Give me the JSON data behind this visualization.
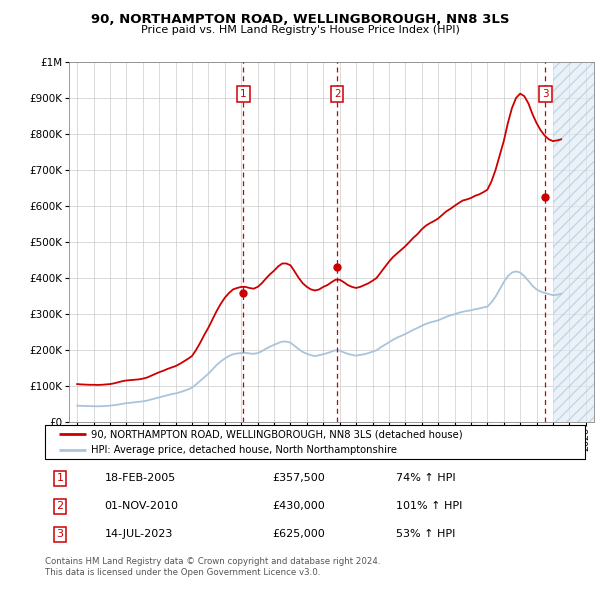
{
  "title": "90, NORTHAMPTON ROAD, WELLINGBOROUGH, NN8 3LS",
  "subtitle": "Price paid vs. HM Land Registry's House Price Index (HPI)",
  "ytick_values": [
    0,
    100000,
    200000,
    300000,
    400000,
    500000,
    600000,
    700000,
    800000,
    900000,
    1000000
  ],
  "ytick_labels": [
    "£0",
    "£100K",
    "£200K",
    "£300K",
    "£400K",
    "£500K",
    "£600K",
    "£700K",
    "£800K",
    "£900K",
    "£1M"
  ],
  "xlim": [
    1994.5,
    2026.5
  ],
  "ylim": [
    0,
    1000000
  ],
  "hpi_line_color": "#aac4dc",
  "property_line_color": "#cc0000",
  "grid_color": "#cccccc",
  "bg_color": "#ffffff",
  "transactions": [
    {
      "num": 1,
      "date": "18-FEB-2005",
      "price": 357500,
      "pct": "74%",
      "year": 2005.13
    },
    {
      "num": 2,
      "date": "01-NOV-2010",
      "price": 430000,
      "pct": "101%",
      "year": 2010.84
    },
    {
      "num": 3,
      "date": "14-JUL-2023",
      "price": 625000,
      "pct": "53%",
      "year": 2023.54
    }
  ],
  "legend_line1": "90, NORTHAMPTON ROAD, WELLINGBOROUGH, NN8 3LS (detached house)",
  "legend_line2": "HPI: Average price, detached house, North Northamptonshire",
  "footer1": "Contains HM Land Registry data © Crown copyright and database right 2024.",
  "footer2": "This data is licensed under the Open Government Licence v3.0.",
  "hatch_start": 2024.0,
  "years": [
    1995.0,
    1995.25,
    1995.5,
    1995.75,
    1996.0,
    1996.25,
    1996.5,
    1996.75,
    1997.0,
    1997.25,
    1997.5,
    1997.75,
    1998.0,
    1998.25,
    1998.5,
    1998.75,
    1999.0,
    1999.25,
    1999.5,
    1999.75,
    2000.0,
    2000.25,
    2000.5,
    2000.75,
    2001.0,
    2001.25,
    2001.5,
    2001.75,
    2002.0,
    2002.25,
    2002.5,
    2002.75,
    2003.0,
    2003.25,
    2003.5,
    2003.75,
    2004.0,
    2004.25,
    2004.5,
    2004.75,
    2005.0,
    2005.25,
    2005.5,
    2005.75,
    2006.0,
    2006.25,
    2006.5,
    2006.75,
    2007.0,
    2007.25,
    2007.5,
    2007.75,
    2008.0,
    2008.25,
    2008.5,
    2008.75,
    2009.0,
    2009.25,
    2009.5,
    2009.75,
    2010.0,
    2010.25,
    2010.5,
    2010.75,
    2011.0,
    2011.25,
    2011.5,
    2011.75,
    2012.0,
    2012.25,
    2012.5,
    2012.75,
    2013.0,
    2013.25,
    2013.5,
    2013.75,
    2014.0,
    2014.25,
    2014.5,
    2014.75,
    2015.0,
    2015.25,
    2015.5,
    2015.75,
    2016.0,
    2016.25,
    2016.5,
    2016.75,
    2017.0,
    2017.25,
    2017.5,
    2017.75,
    2018.0,
    2018.25,
    2018.5,
    2018.75,
    2019.0,
    2019.25,
    2019.5,
    2019.75,
    2020.0,
    2020.25,
    2020.5,
    2020.75,
    2021.0,
    2021.25,
    2021.5,
    2021.75,
    2022.0,
    2022.25,
    2022.5,
    2022.75,
    2023.0,
    2023.25,
    2023.5,
    2023.75,
    2024.0,
    2024.25,
    2024.5
  ],
  "property_values": [
    105000,
    104000,
    103500,
    103000,
    103000,
    102500,
    103000,
    104000,
    105000,
    107000,
    110000,
    113000,
    115000,
    116000,
    117000,
    118000,
    120000,
    123000,
    128000,
    133000,
    138000,
    142000,
    147000,
    151000,
    155000,
    161000,
    168000,
    175000,
    183000,
    200000,
    220000,
    242000,
    262000,
    285000,
    308000,
    328000,
    345000,
    358000,
    368000,
    372000,
    375000,
    375000,
    372000,
    370000,
    375000,
    385000,
    398000,
    410000,
    420000,
    432000,
    440000,
    440000,
    435000,
    418000,
    400000,
    385000,
    375000,
    368000,
    365000,
    368000,
    375000,
    380000,
    388000,
    395000,
    395000,
    388000,
    380000,
    375000,
    372000,
    375000,
    380000,
    385000,
    392000,
    400000,
    415000,
    430000,
    445000,
    458000,
    468000,
    478000,
    488000,
    500000,
    512000,
    522000,
    535000,
    545000,
    552000,
    558000,
    565000,
    575000,
    585000,
    592000,
    600000,
    608000,
    615000,
    618000,
    622000,
    628000,
    632000,
    638000,
    645000,
    668000,
    700000,
    740000,
    780000,
    830000,
    872000,
    900000,
    912000,
    905000,
    885000,
    855000,
    830000,
    810000,
    795000,
    785000,
    780000,
    782000,
    785000
  ],
  "hpi_values": [
    45000,
    44500,
    44000,
    43800,
    43500,
    43200,
    43500,
    44000,
    45000,
    46500,
    48000,
    50000,
    52000,
    53000,
    54500,
    55500,
    57000,
    59000,
    62000,
    65000,
    68000,
    71000,
    74000,
    77000,
    79000,
    82000,
    86000,
    90000,
    95000,
    104000,
    114000,
    124000,
    134000,
    146000,
    158000,
    168000,
    176000,
    183000,
    188000,
    190000,
    191000,
    192000,
    190000,
    189000,
    191000,
    196000,
    203000,
    209000,
    214000,
    219000,
    223000,
    223000,
    220000,
    211000,
    202000,
    194000,
    189000,
    185000,
    183000,
    185000,
    188000,
    191000,
    195000,
    199000,
    198000,
    193000,
    189000,
    186000,
    184000,
    186000,
    188000,
    191000,
    195000,
    199000,
    207000,
    214000,
    221000,
    228000,
    234000,
    239000,
    244000,
    250000,
    256000,
    261000,
    267000,
    272000,
    276000,
    279000,
    282000,
    287000,
    292000,
    296000,
    299000,
    303000,
    306000,
    308000,
    310000,
    313000,
    315000,
    318000,
    320000,
    332000,
    348000,
    368000,
    388000,
    405000,
    415000,
    418000,
    415000,
    405000,
    392000,
    378000,
    368000,
    362000,
    358000,
    355000,
    352000,
    353000,
    356000
  ]
}
